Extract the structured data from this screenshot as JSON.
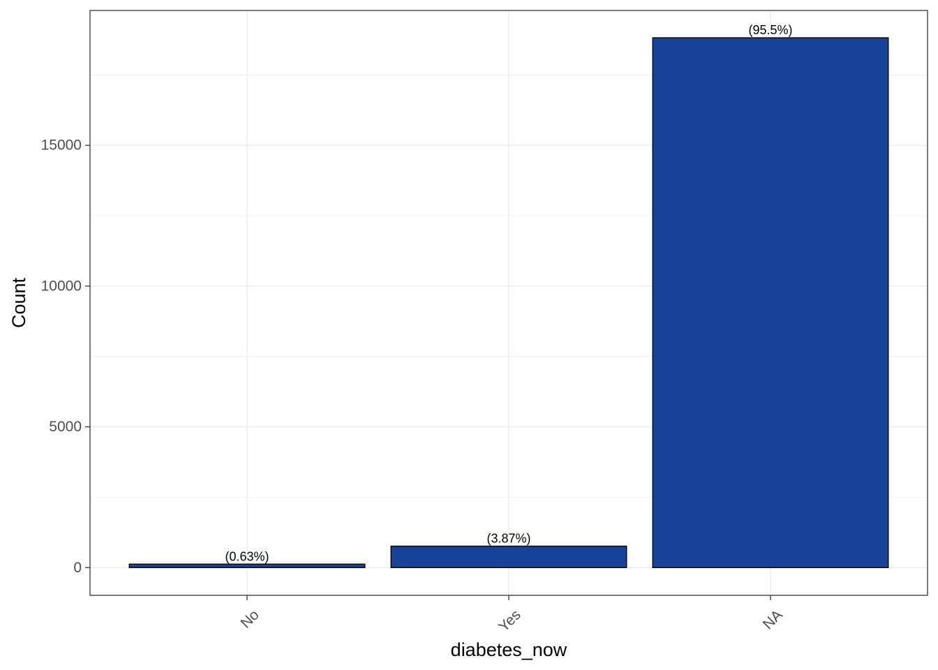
{
  "chart_data": {
    "type": "bar",
    "categories": [
      "No",
      "Yes",
      "NA"
    ],
    "values": [
      124,
      762,
      18820
    ],
    "labels": [
      "(0.63%)",
      "(3.87%)",
      "(95.5%)"
    ],
    "xlabel": "diabetes_now",
    "ylabel": "Count",
    "ylim": [
      -985,
      19790
    ],
    "yticks": [
      0,
      5000,
      10000,
      15000
    ],
    "ytick_labels": [
      "0",
      "5000",
      "10000",
      "15000"
    ],
    "grid": true,
    "bar_color": "#17439B",
    "bar_edge_color": "#000000"
  }
}
